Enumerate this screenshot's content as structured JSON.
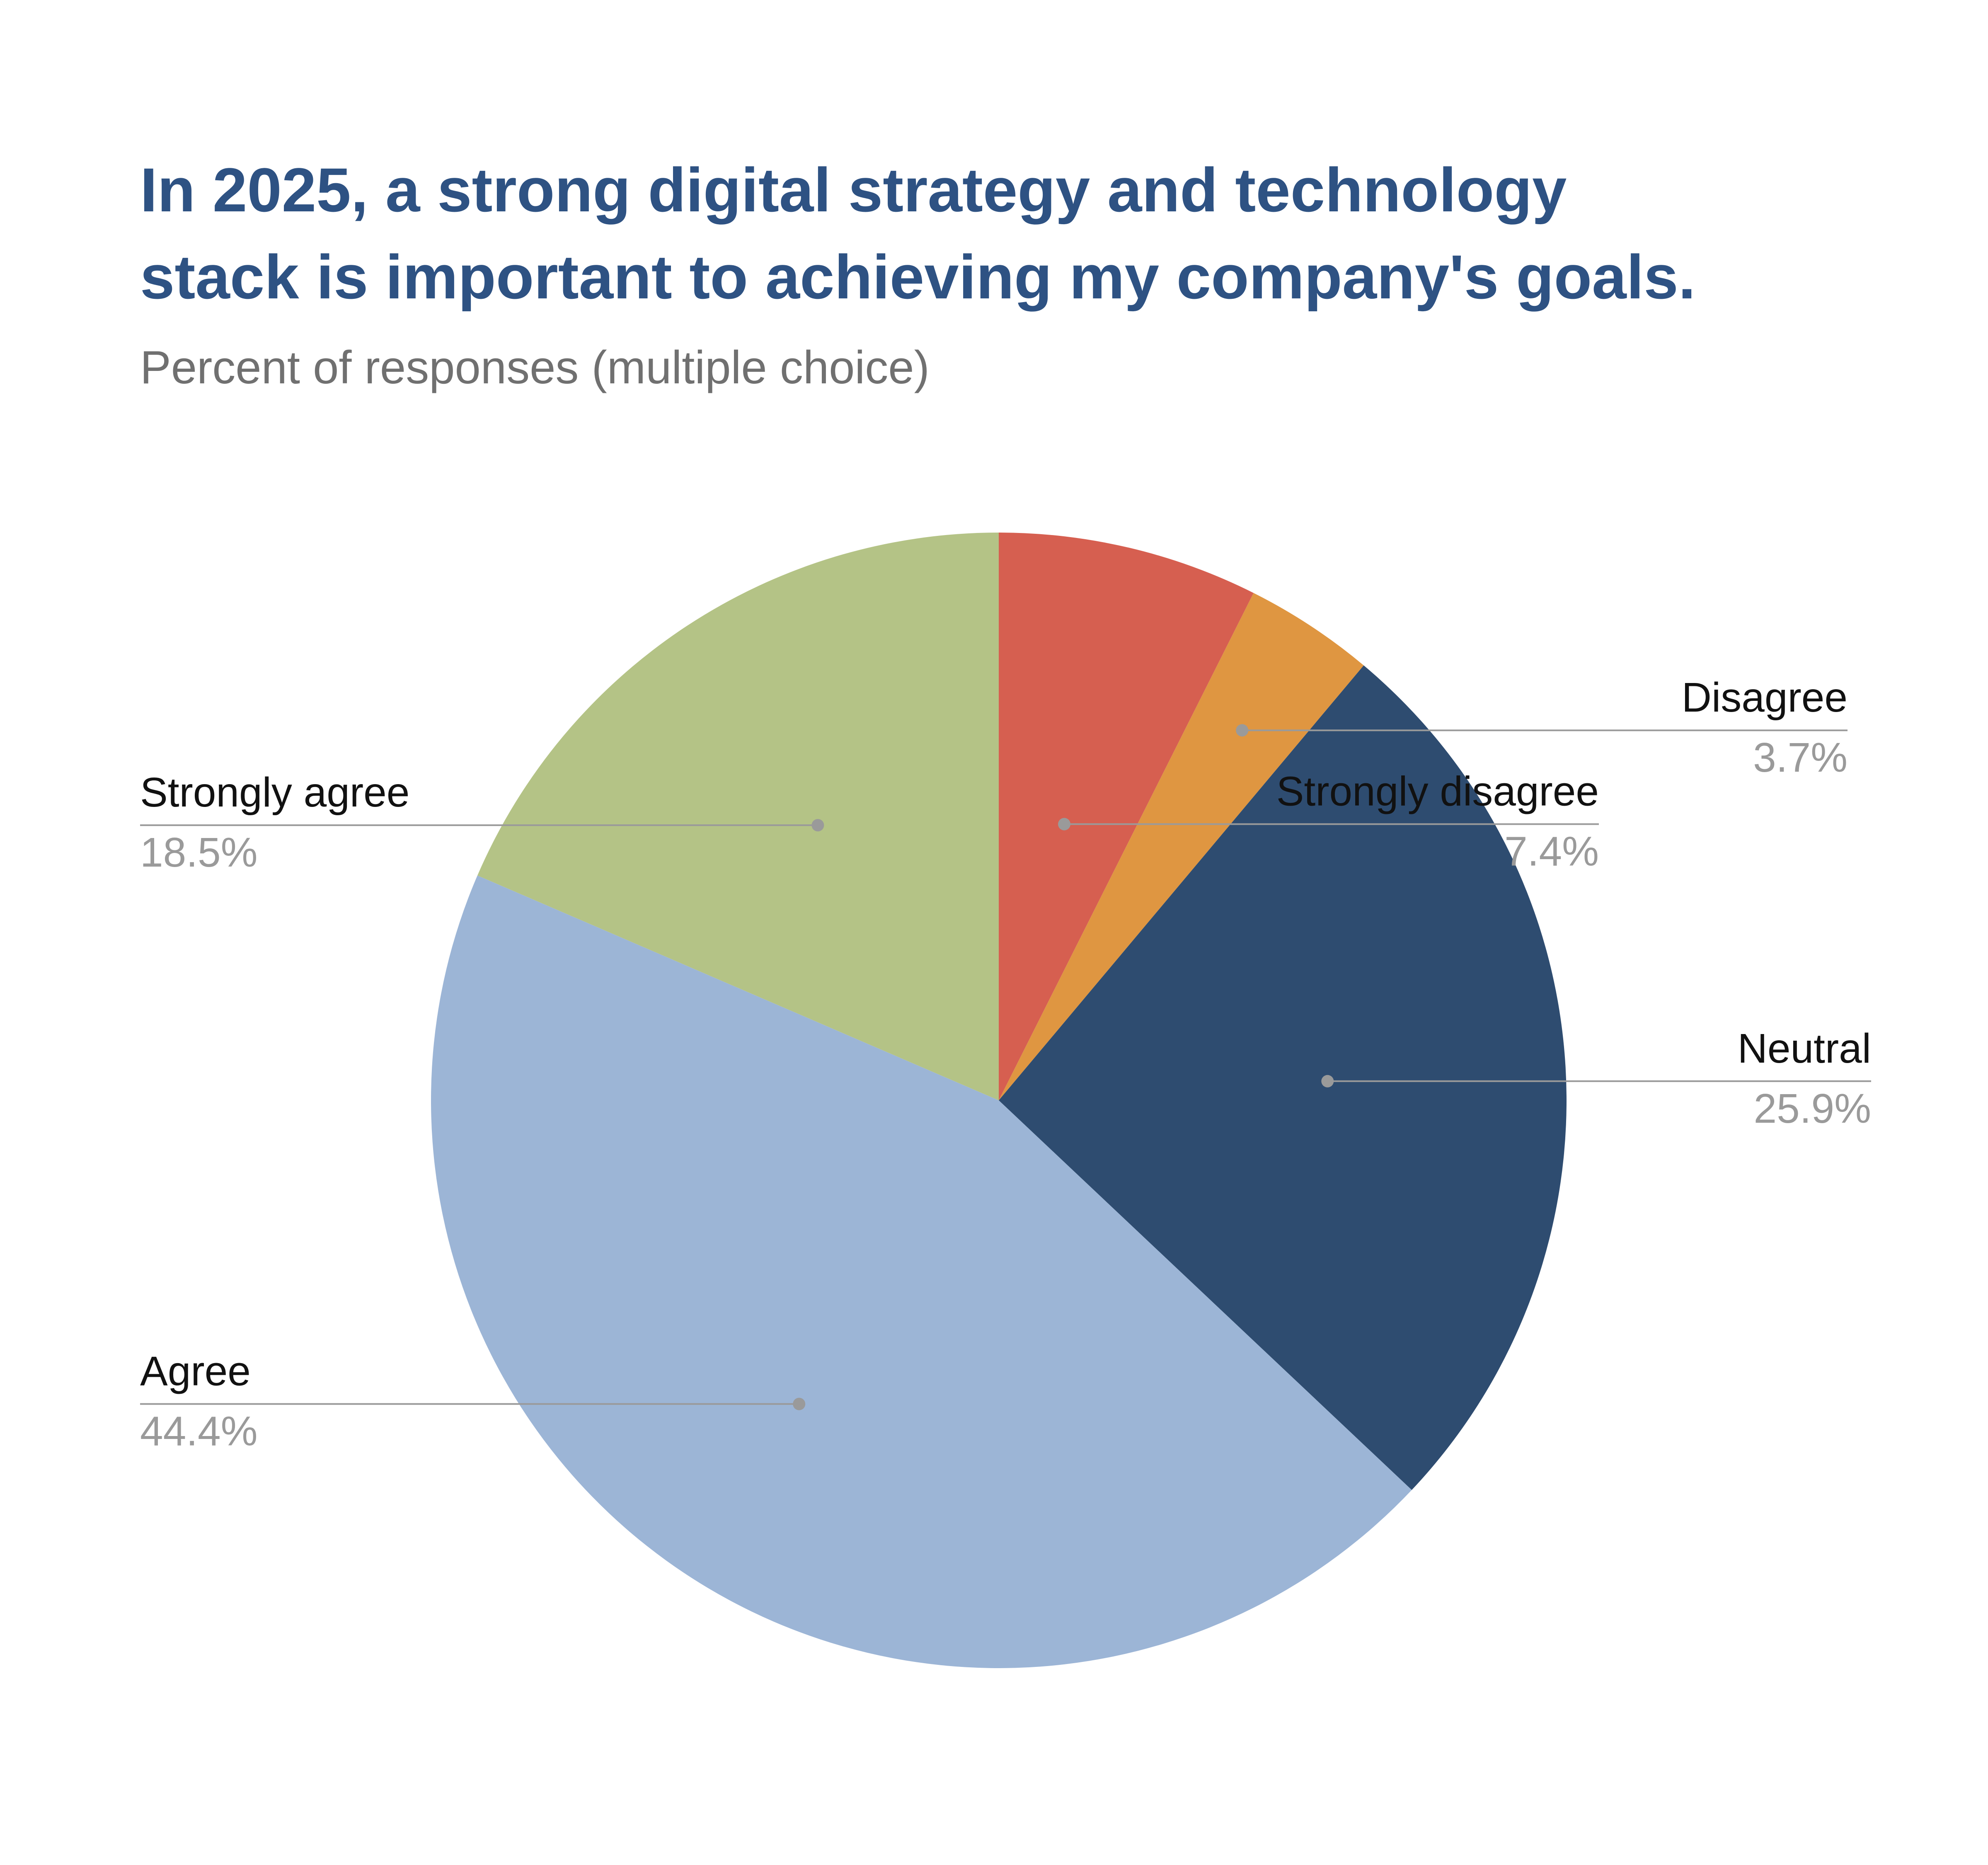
{
  "colors": {
    "title": "#2e5283",
    "subtitle": "#707070",
    "label": "#111111",
    "value": "#9a9a9a",
    "leader": "#9a9a9a",
    "background": "#ffffff"
  },
  "chart_data": {
    "type": "pie",
    "title_lines": [
      "In 2025, a strong digital strategy and technology",
      "stack is important to achieving my company's goals."
    ],
    "subtitle": "Percent of responses (multiple choice)",
    "start_angle_deg": 0,
    "direction": "clockwise",
    "legend": "none",
    "slices": [
      {
        "label": "Strongly disagree",
        "value": 7.4,
        "value_label": "7.4%",
        "color": "#d65f50",
        "label_side": "right"
      },
      {
        "label": "Disagree",
        "value": 3.7,
        "value_label": "3.7%",
        "color": "#df9641",
        "label_side": "right"
      },
      {
        "label": "Neutral",
        "value": 25.9,
        "value_label": "25.9%",
        "color": "#2e4c70",
        "label_side": "right"
      },
      {
        "label": "Agree",
        "value": 44.4,
        "value_label": "44.4%",
        "color": "#9cb5d6",
        "label_side": "left"
      },
      {
        "label": "Strongly agree",
        "value": 18.5,
        "value_label": "18.5%",
        "color": "#b4c386",
        "label_side": "left"
      }
    ]
  }
}
